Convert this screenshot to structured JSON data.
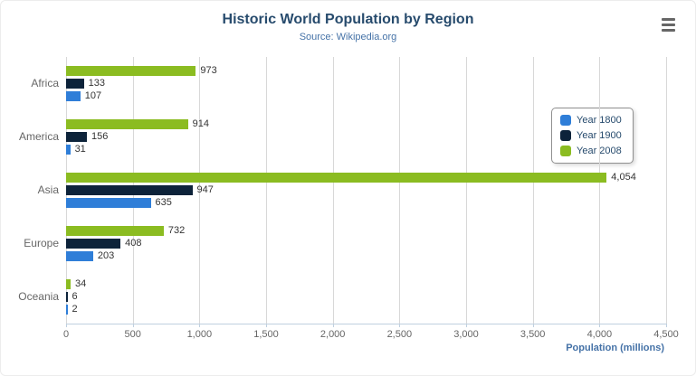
{
  "icons": {
    "menu": "hamburger-icon"
  },
  "chart_data": {
    "type": "bar",
    "orientation": "horizontal",
    "title": "Historic World Population by Region",
    "subtitle": "Source: Wikipedia.org",
    "categories": [
      "Africa",
      "America",
      "Asia",
      "Europe",
      "Oceania"
    ],
    "series": [
      {
        "name": "Year 1800",
        "color": "#2f7ed8",
        "values": [
          107,
          31,
          635,
          203,
          2
        ]
      },
      {
        "name": "Year 1900",
        "color": "#0d233a",
        "values": [
          133,
          156,
          947,
          408,
          6
        ]
      },
      {
        "name": "Year 2008",
        "color": "#8bbc21",
        "values": [
          973,
          914,
          4054,
          732,
          34
        ]
      }
    ],
    "bar_order_top_to_bottom": [
      "Year 2008",
      "Year 1900",
      "Year 1800"
    ],
    "xlabel": "Population (millions)",
    "xlim": [
      0,
      4500
    ],
    "x_ticks": [
      0,
      500,
      1000,
      1500,
      2000,
      2500,
      3000,
      3500,
      4000,
      4500
    ],
    "grid": true,
    "data_labels": true,
    "legend_position": "right"
  }
}
